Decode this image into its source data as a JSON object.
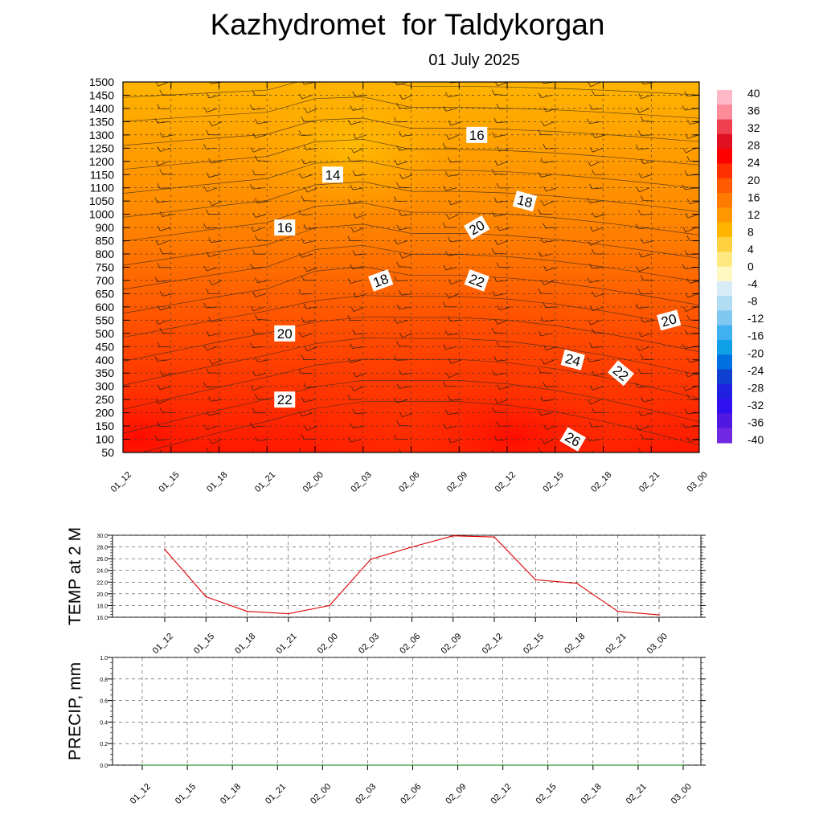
{
  "header": {
    "title": "Kazhydromet  for Taldykorgan",
    "subtitle": "01 July 2025"
  },
  "chart_data": [
    {
      "type": "heatmap",
      "name": "vertical-temperature-wind-section",
      "title": "",
      "x_labels": [
        "01_12",
        "01_15",
        "01_18",
        "01_21",
        "02_00",
        "02_03",
        "02_06",
        "02_09",
        "02_12",
        "02_15",
        "02_18",
        "02_21",
        "03_00"
      ],
      "y_labels": [
        50,
        100,
        150,
        200,
        250,
        300,
        350,
        400,
        450,
        500,
        550,
        600,
        650,
        700,
        750,
        800,
        850,
        900,
        1000,
        1050,
        1100,
        1150,
        1200,
        1250,
        1300,
        1350,
        1400,
        1450,
        1500
      ],
      "colorbar_labels": [
        40,
        36,
        32,
        28,
        24,
        20,
        16,
        12,
        8,
        4,
        0,
        -4,
        -8,
        -12,
        -16,
        -20,
        -24,
        -28,
        -32,
        -36,
        -40
      ],
      "contour_labels": [
        {
          "text": "14",
          "x": "02_00",
          "level": 1150
        },
        {
          "text": "16",
          "x": "01_21",
          "level": 900
        },
        {
          "text": "16",
          "x": "02_09",
          "level": 1300
        },
        {
          "text": "18",
          "x": "02_03",
          "level": 700
        },
        {
          "text": "18",
          "x": "02_12",
          "level": 1050
        },
        {
          "text": "20",
          "x": "01_21",
          "level": 500
        },
        {
          "text": "20",
          "x": "02_09",
          "level": 900
        },
        {
          "text": "20",
          "x": "02_21",
          "level": 550
        },
        {
          "text": "22",
          "x": "01_21",
          "level": 250
        },
        {
          "text": "22",
          "x": "02_09",
          "level": 700
        },
        {
          "text": "22",
          "x": "02_18",
          "level": 350
        },
        {
          "text": "24",
          "x": "02_15",
          "level": 400
        },
        {
          "text": "26",
          "x": "02_15",
          "level": 100
        }
      ],
      "colors": {
        "warm_top": "#ffb800",
        "warm_bottom": "#ff1000"
      }
    },
    {
      "type": "line",
      "name": "temperature-2m",
      "ylabel": "TEMP at 2 M",
      "ylim": [
        16.0,
        30.0
      ],
      "y_ticks": [
        "30.0",
        "28.0",
        "26.0",
        "24.0",
        "22.0",
        "20.0",
        "18.0",
        "16.0"
      ],
      "categories": [
        "01_12",
        "01_15",
        "01_18",
        "01_21",
        "02_00",
        "02_03",
        "02_06",
        "02_09",
        "02_12",
        "02_15",
        "02_18",
        "02_21",
        "03_00"
      ],
      "values": [
        27.6,
        19.5,
        17.0,
        16.6,
        18.0,
        25.9,
        28.0,
        29.9,
        29.7,
        22.4,
        21.8,
        17.0,
        16.4
      ],
      "line_color": "#e00000",
      "grid": true
    },
    {
      "type": "line",
      "name": "precipitation",
      "ylabel": "PRECIP, mm",
      "ylim": [
        0.0,
        1.0
      ],
      "y_ticks": [
        "1.0",
        "0.8",
        "0.6",
        "0.4",
        "0.2",
        "0.0"
      ],
      "categories": [
        "01_12",
        "01_15",
        "01_18",
        "01_21",
        "02_00",
        "02_03",
        "02_06",
        "02_09",
        "02_12",
        "02_15",
        "02_18",
        "02_21",
        "03_00"
      ],
      "values": [
        0,
        0,
        0,
        0,
        0,
        0,
        0,
        0,
        0,
        0,
        0,
        0,
        0
      ],
      "line_color": "#008000",
      "grid": true
    }
  ]
}
